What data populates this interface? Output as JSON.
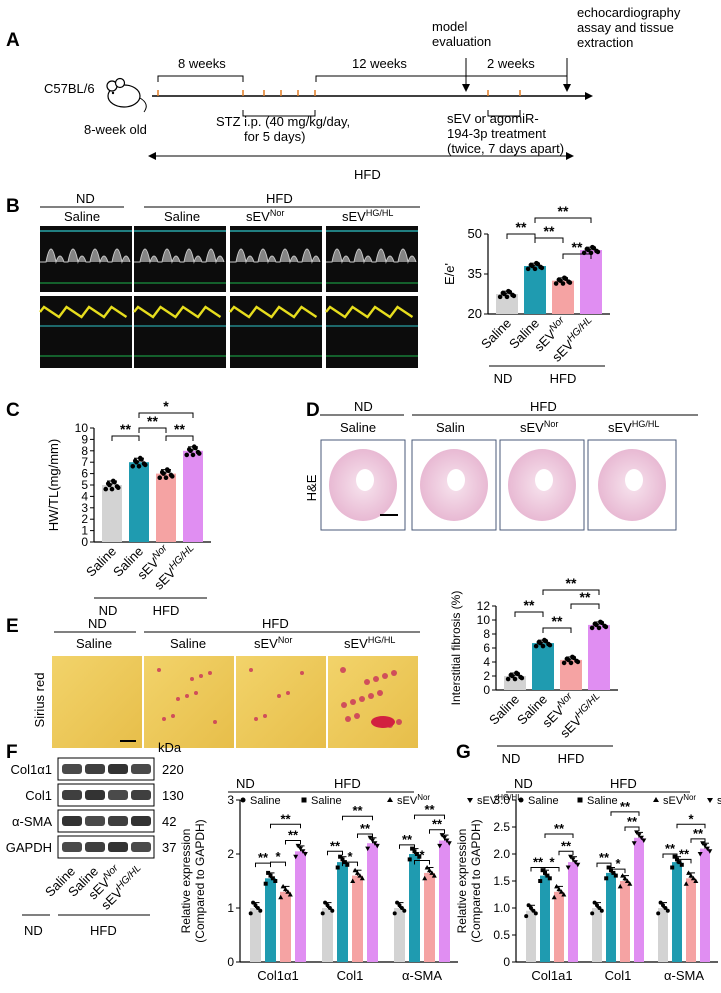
{
  "panels": {
    "A": "A",
    "B": "B",
    "C": "C",
    "D": "D",
    "E": "E",
    "F": "F",
    "G": "G"
  },
  "timeline": {
    "strain": "C57BL/6",
    "age": "8-week old",
    "seg1": "8 weeks",
    "seg2": "12 weeks",
    "seg3": "2 weeks",
    "stz": [
      "STZ i.p. (40 mg/kg/day,",
      "for 5 days)"
    ],
    "model_eval": [
      "model",
      "evaluation"
    ],
    "echo": [
      "echocardiography",
      "assay and tissue",
      "extraction"
    ],
    "treatment": [
      "sEV or agomiR-",
      "194-3p treatment",
      "(twice, 7 days apart)"
    ],
    "diet": "HFD"
  },
  "groups": {
    "nd": "ND",
    "hfd": "HFD",
    "saline": "Saline",
    "salin": "Salin",
    "sev": "sEV",
    "nor": "Nor",
    "hghl": "HG/HL"
  },
  "stains": {
    "he": "H&E",
    "sirius": "Sirius red"
  },
  "blot": {
    "kda": "kDa",
    "rows": [
      {
        "name": "Col1α1",
        "kda": "220"
      },
      {
        "name": "Col1",
        "kda": "130"
      },
      {
        "name": "α-SMA",
        "kda": "42"
      },
      {
        "name": "GAPDH",
        "kda": "37"
      }
    ]
  },
  "sig": {
    "double": "**",
    "single": "*"
  },
  "colors": {
    "saline_nd": "#d3d3d3",
    "saline_hfd": "#1f9bb0",
    "sev_nor": "#f5a3a3",
    "sev_hghl": "#e08ef2"
  },
  "chart_data": [
    {
      "id": "B",
      "type": "bar",
      "categories": [
        "Saline",
        "Saline",
        "sEVNor",
        "sEVHG/HL"
      ],
      "values": [
        27.5,
        38,
        32.5,
        44
      ],
      "ylabel": "E/e'",
      "ylim": [
        20,
        50
      ],
      "ticks": [
        "20",
        "35",
        "50"
      ]
    },
    {
      "id": "C",
      "type": "bar",
      "categories": [
        "Saline",
        "Saline",
        "sEVNor",
        "sEVHG/HL"
      ],
      "values": [
        5,
        7,
        6,
        8
      ],
      "ylabel": "HW/TL(mg/mm)",
      "ylim": [
        0,
        10
      ],
      "ticks": [
        "0",
        "1",
        "2",
        "3",
        "4",
        "5",
        "6",
        "7",
        "8",
        "9",
        "10"
      ]
    },
    {
      "id": "E",
      "type": "bar",
      "categories": [
        "Saline",
        "Saline",
        "sEVNor",
        "sEVHG/HL"
      ],
      "values": [
        2,
        6.7,
        4.3,
        9.3
      ],
      "ylabel": "Interstitial fibrosis (%)",
      "ylim": [
        0,
        12
      ],
      "ticks": [
        "0",
        "2",
        "4",
        "6",
        "8",
        "10",
        "12"
      ]
    },
    {
      "id": "F",
      "type": "bar",
      "categories": [
        "Col1α1",
        "Col1",
        "α-SMA"
      ],
      "series": [
        {
          "name": "Saline",
          "group": "ND",
          "values": [
            1.0,
            1.0,
            1.0
          ]
        },
        {
          "name": "Saline",
          "group": "HFD",
          "values": [
            1.55,
            1.85,
            2.0
          ]
        },
        {
          "name": "sEVNor",
          "group": "HFD",
          "values": [
            1.3,
            1.6,
            1.65
          ]
        },
        {
          "name": "sEVHG/HL",
          "group": "HFD",
          "values": [
            2.05,
            2.2,
            2.25
          ]
        }
      ],
      "ylabel": [
        "Relative expression",
        "(Compared to GAPDH)"
      ],
      "ylim": [
        0,
        3
      ],
      "ticks": [
        "0",
        "1",
        "2",
        "3"
      ]
    },
    {
      "id": "G",
      "type": "bar",
      "categories": [
        "Col1a1",
        "Col1",
        "α-SMA"
      ],
      "series": [
        {
          "name": "Saline",
          "group": "ND",
          "values": [
            0.95,
            1.0,
            1.0
          ]
        },
        {
          "name": "Saline",
          "group": "HFD",
          "values": [
            1.6,
            1.65,
            1.85
          ]
        },
        {
          "name": "sEVNor",
          "group": "HFD",
          "values": [
            1.3,
            1.5,
            1.55
          ]
        },
        {
          "name": "sEVHG/HL",
          "group": "HFD",
          "values": [
            1.85,
            2.3,
            2.1
          ]
        }
      ],
      "ylabel": [
        "Relative expression",
        "(Compared to GAPDH)"
      ],
      "ylim": [
        0,
        3.0
      ],
      "ticks": [
        "0",
        "0.5",
        "1.0",
        "1.5",
        "2.0",
        "2.5",
        "3.0"
      ]
    }
  ]
}
